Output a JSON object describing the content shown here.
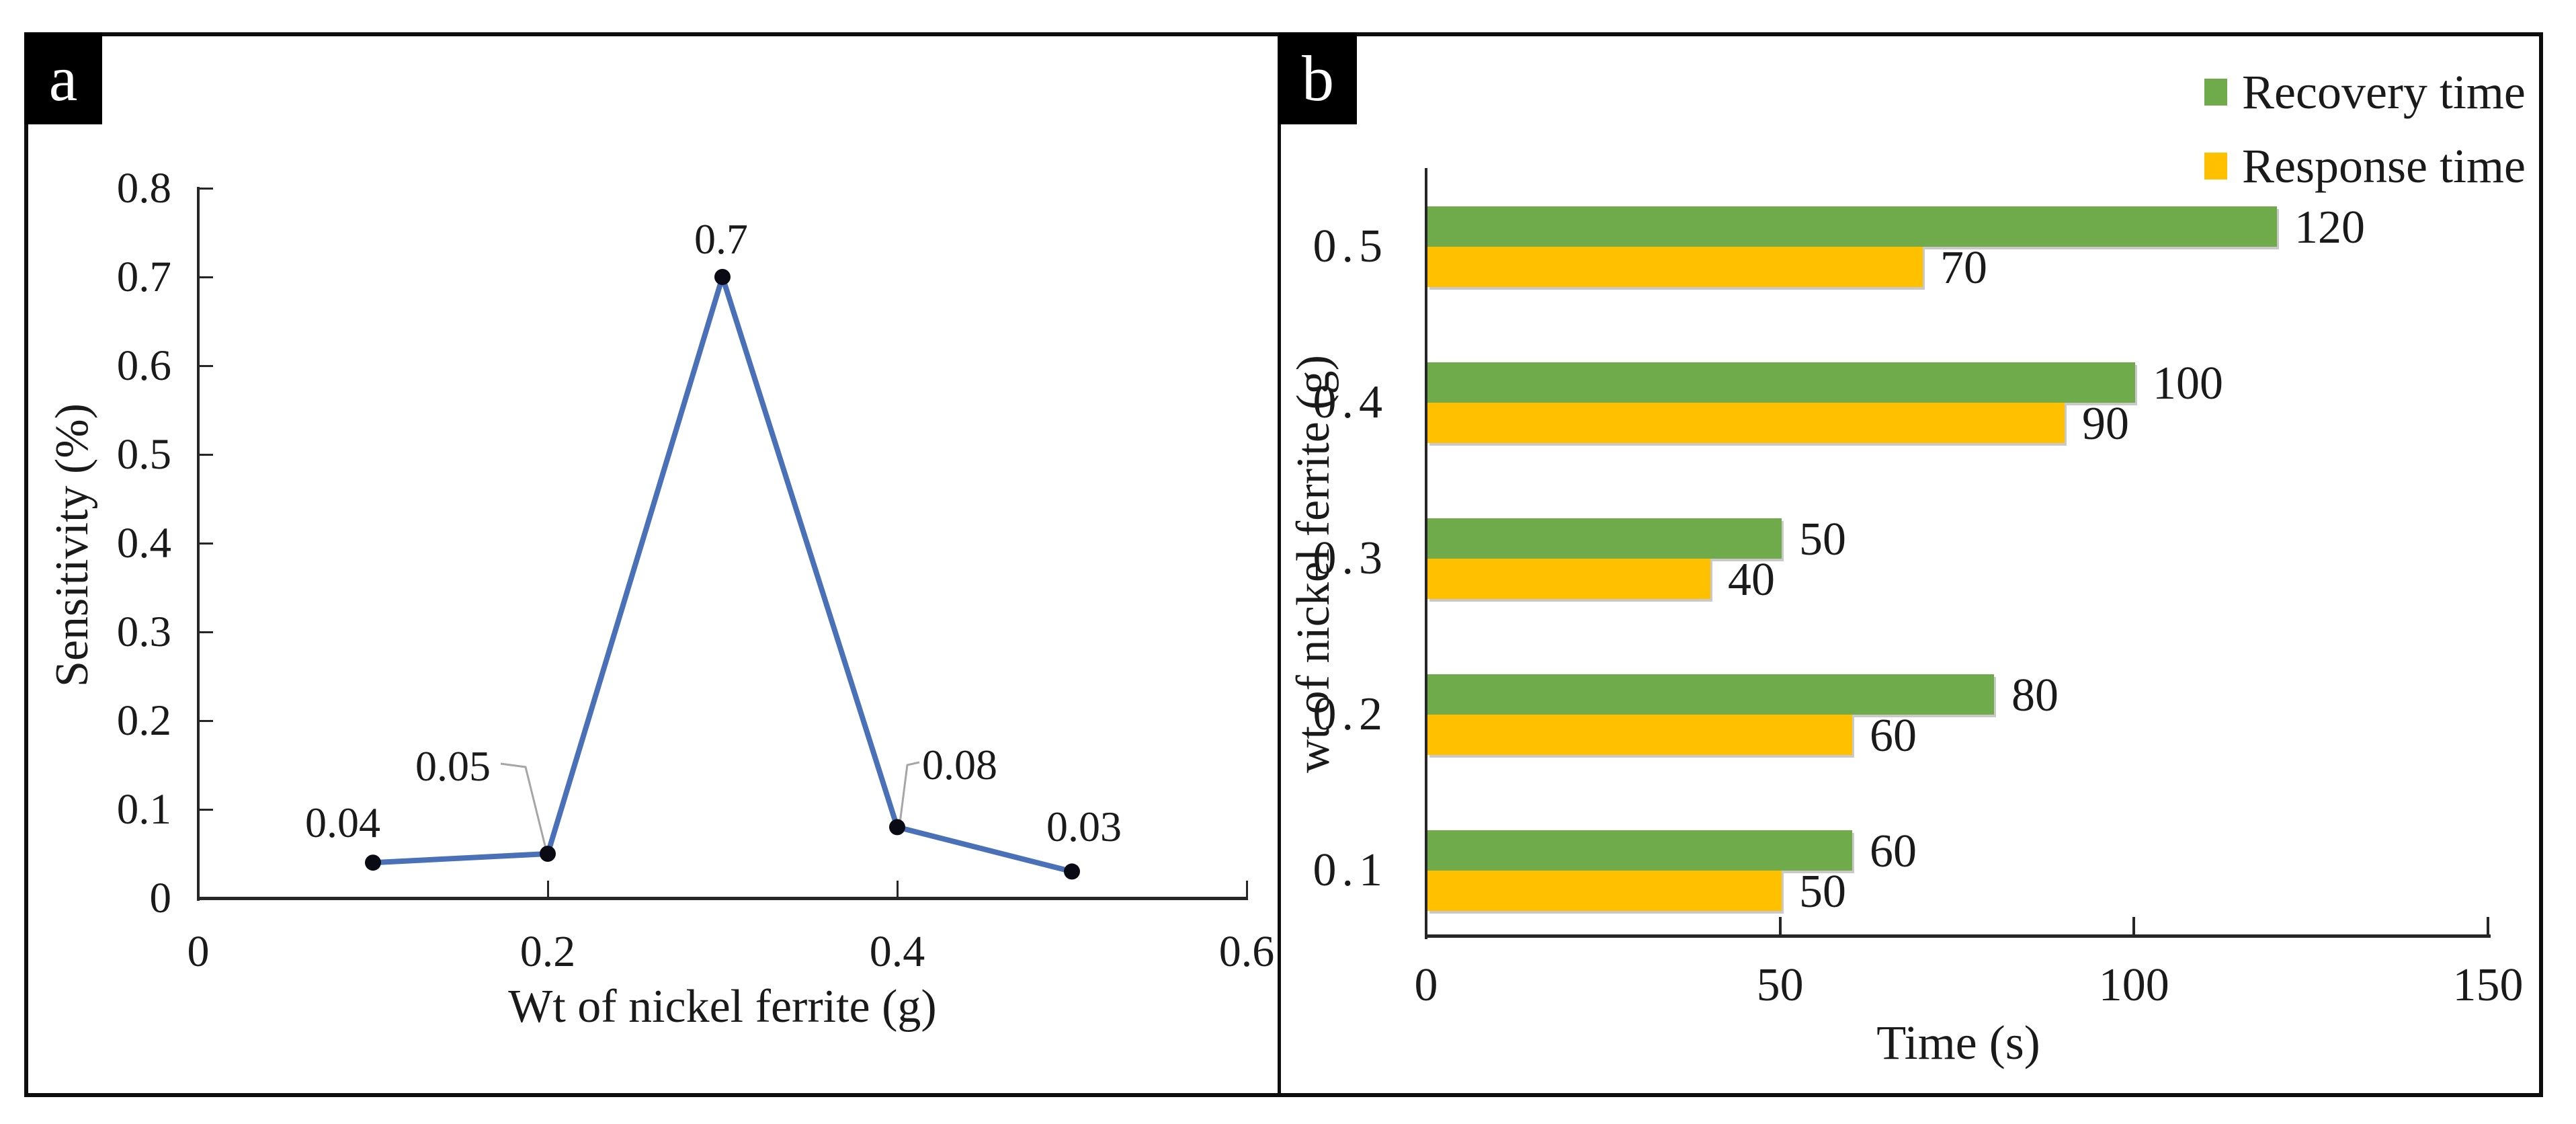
{
  "figure": {
    "panel_a": {
      "tag": "a",
      "xlabel": "Wt of nickel ferrite (g)",
      "ylabel": "Sensitivity (%)"
    },
    "panel_b": {
      "tag": "b",
      "xlabel": "Time (s)",
      "ylabel": "wt of nickel ferrite (g)"
    }
  },
  "colors": {
    "line_blue": "#4A70B8",
    "marker_black": "#0a0a14",
    "recovery_green": "#6FAB4A",
    "response_yellow": "#FFC000",
    "leader_gray": "#A6A6A6",
    "axis": "#262626",
    "frame": "#0d0d0d"
  },
  "chart_data": [
    {
      "type": "line",
      "panel": "a",
      "xlabel": "Wt of nickel ferrite (g)",
      "ylabel": "Sensitivity (%)",
      "x": [
        0.1,
        0.2,
        0.3,
        0.4,
        0.5
      ],
      "y": [
        0.04,
        0.05,
        0.7,
        0.08,
        0.03
      ],
      "point_labels": [
        "0.04",
        "0.05",
        "0.7",
        "0.08",
        "0.03"
      ],
      "xlim": [
        0,
        0.6
      ],
      "ylim": [
        0,
        0.8
      ],
      "xticks": [
        0,
        0.2,
        0.4,
        0.6
      ],
      "xtick_labels": [
        "0",
        "0.2",
        "0.4",
        "0.6"
      ],
      "yticks": [
        0,
        0.1,
        0.2,
        0.3,
        0.4,
        0.5,
        0.6,
        0.7,
        0.8
      ],
      "ytick_labels": [
        "0",
        "0.1",
        "0.2",
        "0.3",
        "0.4",
        "0.5",
        "0.6",
        "0.7",
        "0.8"
      ],
      "grid": false,
      "legend": "none"
    },
    {
      "type": "bar",
      "panel": "b",
      "orientation": "horizontal",
      "xlabel": "Time (s)",
      "ylabel": "wt of nickel ferrite (g)",
      "categories": [
        "0.5",
        "0.4",
        "0.3",
        "0.2",
        "0.1"
      ],
      "series": [
        {
          "name": "Recovery time",
          "color": "#6FAB4A",
          "values": [
            120,
            100,
            50,
            80,
            60
          ]
        },
        {
          "name": "Response time",
          "color": "#FFC000",
          "values": [
            70,
            90,
            40,
            60,
            50
          ]
        }
      ],
      "xlim": [
        0,
        150
      ],
      "xticks": [
        0,
        50,
        100,
        150
      ],
      "xtick_labels": [
        "0",
        "50",
        "100",
        "150"
      ],
      "grid": false,
      "legend_position": "top-right",
      "data_labels": true
    }
  ]
}
